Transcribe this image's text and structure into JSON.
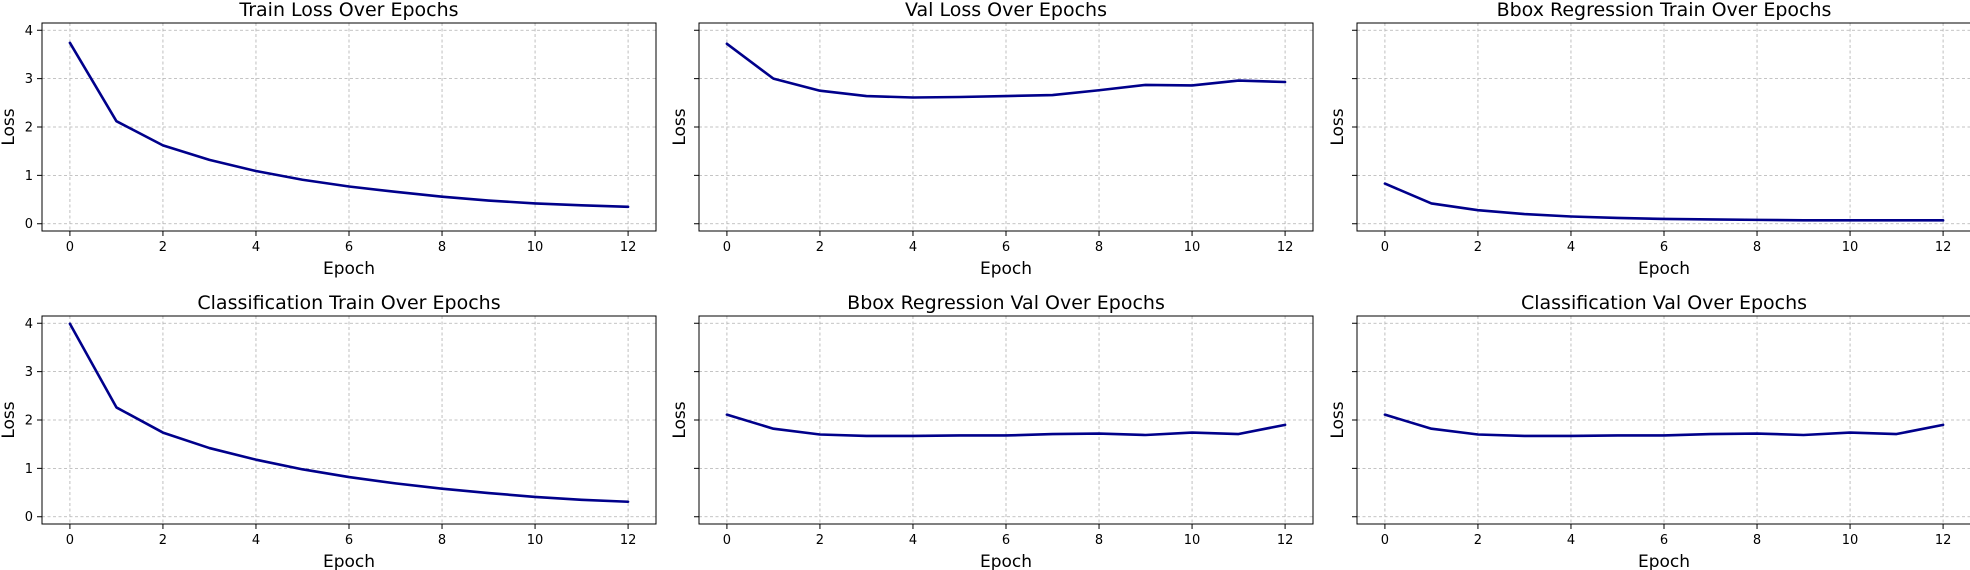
{
  "chart_data": [
    {
      "type": "line",
      "title": "Train Loss Over Epochs",
      "xlabel": "Epoch",
      "ylabel": "Loss",
      "x": [
        0,
        1,
        2,
        3,
        4,
        5,
        6,
        7,
        8,
        9,
        10,
        11,
        12
      ],
      "series": [
        {
          "values": [
            3.74,
            2.12,
            1.62,
            1.32,
            1.09,
            0.91,
            0.77,
            0.66,
            0.56,
            0.48,
            0.42,
            0.38,
            0.35
          ],
          "color": "#00008b"
        }
      ],
      "xlim": [
        -0.6,
        12.6
      ],
      "ylim": [
        -0.15,
        4.15
      ],
      "xticks": [
        0,
        2,
        4,
        6,
        8,
        10,
        12
      ],
      "yticks": [
        0,
        1,
        2,
        3,
        4
      ],
      "show_ytick_labels": true,
      "grid": true
    },
    {
      "type": "line",
      "title": "Val Loss Over Epochs",
      "xlabel": "Epoch",
      "ylabel": "Loss",
      "x": [
        0,
        1,
        2,
        3,
        4,
        5,
        6,
        7,
        8,
        9,
        10,
        11,
        12
      ],
      "series": [
        {
          "values": [
            3.72,
            3.0,
            2.75,
            2.64,
            2.61,
            2.62,
            2.64,
            2.66,
            2.76,
            2.87,
            2.86,
            2.96,
            2.93
          ],
          "color": "#00008b"
        }
      ],
      "xlim": [
        -0.6,
        12.6
      ],
      "ylim": [
        -0.15,
        4.15
      ],
      "xticks": [
        0,
        2,
        4,
        6,
        8,
        10,
        12
      ],
      "yticks": [
        0,
        1,
        2,
        3,
        4
      ],
      "show_ytick_labels": false,
      "grid": true
    },
    {
      "type": "line",
      "title": "Bbox Regression Train Over Epochs",
      "xlabel": "Epoch",
      "ylabel": "Loss",
      "x": [
        0,
        1,
        2,
        3,
        4,
        5,
        6,
        7,
        8,
        9,
        10,
        11,
        12
      ],
      "series": [
        {
          "values": [
            0.83,
            0.42,
            0.28,
            0.2,
            0.15,
            0.12,
            0.1,
            0.09,
            0.08,
            0.07,
            0.07,
            0.07,
            0.07
          ],
          "color": "#00008b"
        }
      ],
      "xlim": [
        -0.6,
        12.6
      ],
      "ylim": [
        -0.15,
        4.15
      ],
      "xticks": [
        0,
        2,
        4,
        6,
        8,
        10,
        12
      ],
      "yticks": [
        0,
        1,
        2,
        3,
        4
      ],
      "show_ytick_labels": false,
      "grid": true
    },
    {
      "type": "line",
      "title": "Classification Train Over Epochs",
      "xlabel": "Epoch",
      "ylabel": "Loss",
      "x": [
        0,
        1,
        2,
        3,
        4,
        5,
        6,
        7,
        8,
        9,
        10,
        11,
        12
      ],
      "series": [
        {
          "values": [
            3.99,
            2.26,
            1.74,
            1.42,
            1.18,
            0.98,
            0.82,
            0.69,
            0.58,
            0.49,
            0.41,
            0.35,
            0.31
          ],
          "color": "#00008b"
        }
      ],
      "xlim": [
        -0.6,
        12.6
      ],
      "ylim": [
        -0.15,
        4.15
      ],
      "xticks": [
        0,
        2,
        4,
        6,
        8,
        10,
        12
      ],
      "yticks": [
        0,
        1,
        2,
        3,
        4
      ],
      "show_ytick_labels": true,
      "grid": true
    },
    {
      "type": "line",
      "title": "Bbox Regression Val Over Epochs",
      "xlabel": "Epoch",
      "ylabel": "Loss",
      "x": [
        0,
        1,
        2,
        3,
        4,
        5,
        6,
        7,
        8,
        9,
        10,
        11,
        12
      ],
      "series": [
        {
          "values": [
            2.11,
            1.82,
            1.7,
            1.67,
            1.67,
            1.68,
            1.68,
            1.71,
            1.72,
            1.69,
            1.74,
            1.71,
            1.9
          ],
          "color": "#00008b"
        }
      ],
      "xlim": [
        -0.6,
        12.6
      ],
      "ylim": [
        -0.15,
        4.15
      ],
      "xticks": [
        0,
        2,
        4,
        6,
        8,
        10,
        12
      ],
      "yticks": [
        0,
        1,
        2,
        3,
        4
      ],
      "show_ytick_labels": false,
      "grid": true
    },
    {
      "type": "line",
      "title": "Classification Val Over Epochs",
      "xlabel": "Epoch",
      "ylabel": "Loss",
      "x": [
        0,
        1,
        2,
        3,
        4,
        5,
        6,
        7,
        8,
        9,
        10,
        11,
        12
      ],
      "series": [
        {
          "values": [
            2.11,
            1.82,
            1.7,
            1.67,
            1.67,
            1.68,
            1.68,
            1.71,
            1.72,
            1.69,
            1.74,
            1.71,
            1.9
          ],
          "color": "#00008b"
        }
      ],
      "xlim": [
        -0.6,
        12.6
      ],
      "ylim": [
        -0.15,
        4.15
      ],
      "xticks": [
        0,
        2,
        4,
        6,
        8,
        10,
        12
      ],
      "yticks": [
        0,
        1,
        2,
        3,
        4
      ],
      "show_ytick_labels": false,
      "grid": true
    }
  ]
}
